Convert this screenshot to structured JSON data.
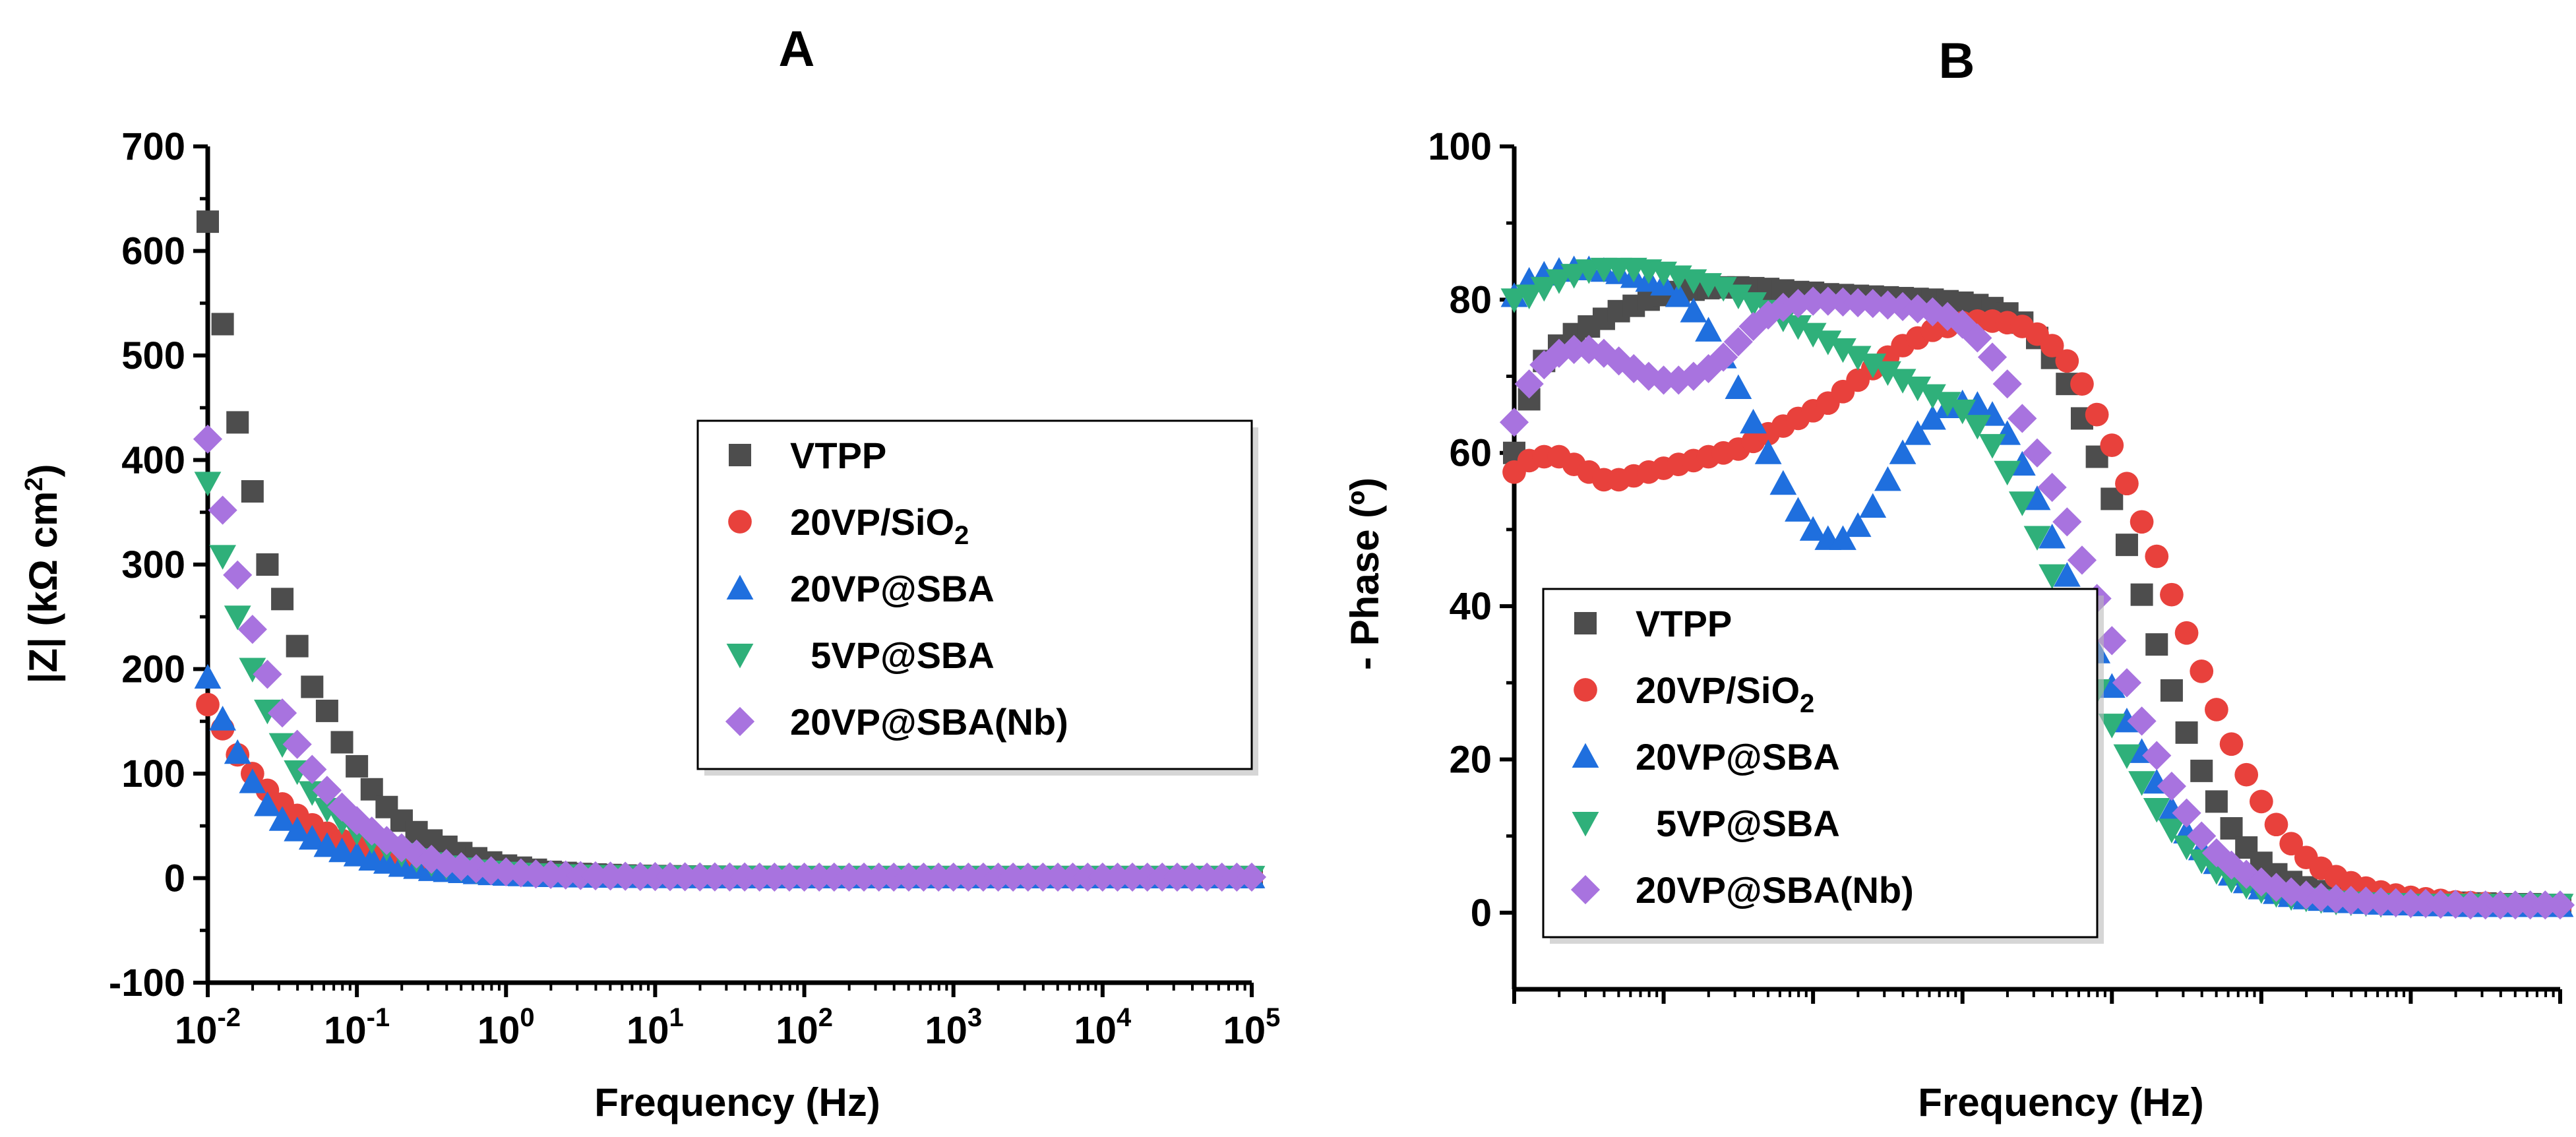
{
  "legend_entries": [
    {
      "label": "VTPP",
      "sub": "",
      "tail": "",
      "color": "#4d4d4d",
      "marker": "square"
    },
    {
      "label": "20VP/SiO",
      "sub": "2",
      "tail": "",
      "color": "#e8413c",
      "marker": "circle"
    },
    {
      "label": "20VP@SBA",
      "sub": "",
      "tail": "",
      "color": "#1f6fde",
      "marker": "triangle-up"
    },
    {
      "label": "  5VP@SBA",
      "sub": "",
      "tail": "",
      "color": "#2fb07a",
      "marker": "triangle-down"
    },
    {
      "label": "20VP@SBA(Nb)",
      "sub": "",
      "tail": "",
      "color": "#a873df",
      "marker": "diamond"
    }
  ],
  "chart_data": [
    {
      "panel": "A",
      "type": "scatter",
      "title": "A",
      "xlabel": "Frequency (Hz)",
      "ylabel_parts": [
        "|Z| (kΩ cm",
        "2",
        ")"
      ],
      "x_scale": "log",
      "xlim_log10": [
        -2,
        5
      ],
      "ylim": [
        -100,
        700
      ],
      "yticks": [
        -100,
        0,
        100,
        200,
        300,
        400,
        500,
        600,
        700
      ],
      "xtick_labels": [
        {
          "base": "10",
          "exp": "-2"
        },
        {
          "base": "10",
          "exp": "-1"
        },
        {
          "base": "10",
          "exp": "0"
        },
        {
          "base": "10",
          "exp": "1"
        },
        {
          "base": "10",
          "exp": "2"
        },
        {
          "base": "10",
          "exp": "3"
        },
        {
          "base": "10",
          "exp": "4"
        },
        {
          "base": "10",
          "exp": "5"
        }
      ],
      "legend_position": "center-right",
      "x_log10": [
        -2.0,
        -1.9,
        -1.8,
        -1.7,
        -1.6,
        -1.5,
        -1.4,
        -1.3,
        -1.2,
        -1.1,
        -1.0,
        -0.9,
        -0.8,
        -0.7,
        -0.6,
        -0.5,
        -0.4,
        -0.3,
        -0.2,
        -0.1,
        0.0,
        0.1,
        0.2,
        0.3,
        0.4,
        0.5,
        0.6,
        0.7,
        0.8,
        0.9,
        1.0,
        1.1,
        1.2,
        1.3,
        1.4,
        1.5,
        1.6,
        1.7,
        1.8,
        1.9,
        2.0,
        2.1,
        2.2,
        2.3,
        2.4,
        2.5,
        2.6,
        2.7,
        2.8,
        2.9,
        3.0,
        3.1,
        3.2,
        3.3,
        3.4,
        3.5,
        3.6,
        3.7,
        3.8,
        3.9,
        4.0,
        4.1,
        4.2,
        4.3,
        4.4,
        4.5,
        4.6,
        4.7,
        4.8,
        4.9,
        5.0
      ],
      "series": [
        {
          "name": "VTPP",
          "values": [
            628,
            530,
            436,
            370,
            300,
            267,
            222,
            183,
            160,
            130,
            107,
            85,
            68,
            55,
            44,
            36,
            30,
            24,
            19,
            15,
            12,
            10,
            8,
            6,
            5,
            4,
            3.5,
            3,
            2.5,
            2.2,
            2,
            1.8,
            1.6,
            1.5,
            1.4,
            1.3,
            1.2,
            1.2,
            1.1,
            1.1,
            1,
            1,
            1,
            1,
            1,
            1,
            1,
            1,
            1,
            1,
            1,
            1,
            1,
            1,
            1,
            1,
            1,
            1,
            1,
            1,
            1,
            1,
            1,
            1,
            1,
            1,
            1,
            1,
            1,
            1,
            1
          ]
        },
        {
          "name": "20VP/SiO2",
          "values": [
            166,
            143,
            118,
            100,
            84,
            71,
            60,
            51,
            43,
            36,
            30,
            25,
            20,
            16,
            13,
            11,
            9,
            7,
            6,
            5,
            4,
            3.5,
            3,
            2.5,
            2.2,
            2,
            1.8,
            1.6,
            1.5,
            1.4,
            1.3,
            1.2,
            1.2,
            1.1,
            1.1,
            1,
            1,
            1,
            1,
            1,
            1,
            1,
            1,
            1,
            1,
            1,
            1,
            1,
            1,
            1,
            1,
            1,
            1,
            1,
            1,
            1,
            1,
            1,
            1,
            1,
            1,
            1,
            1,
            1,
            1,
            1,
            1,
            1,
            1,
            1,
            1
          ]
        },
        {
          "name": "20VP@SBA",
          "values": [
            192,
            152,
            120,
            92,
            70,
            56,
            46,
            38,
            31,
            26,
            22,
            18,
            15,
            12,
            10,
            8,
            7,
            6,
            5,
            4,
            3.5,
            3,
            2.5,
            2.2,
            2,
            1.8,
            1.6,
            1.5,
            1.4,
            1.3,
            1.2,
            1.2,
            1.1,
            1.1,
            1,
            1,
            1,
            1,
            1,
            1,
            1,
            1,
            1,
            1,
            1,
            1,
            1,
            1,
            1,
            1,
            1,
            1,
            1,
            1,
            1,
            1,
            1,
            1,
            1,
            1,
            1,
            1,
            1,
            1,
            1,
            1,
            1,
            1,
            1,
            1,
            1
          ]
        },
        {
          "name": "5VP@SBA",
          "values": [
            378,
            308,
            250,
            200,
            160,
            128,
            102,
            82,
            66,
            54,
            44,
            36,
            29,
            23,
            18,
            14,
            11,
            9,
            7,
            6,
            5,
            4,
            3.5,
            3,
            2.5,
            2.2,
            2,
            1.8,
            1.6,
            1.5,
            1.4,
            1.3,
            1.2,
            1.2,
            1.1,
            1.1,
            1,
            1,
            1,
            1,
            1,
            1,
            1,
            1,
            1,
            1,
            1,
            1,
            1,
            1,
            1,
            1,
            1,
            1,
            1,
            1,
            1,
            1,
            1,
            1,
            1,
            1,
            1,
            1,
            1,
            1,
            1,
            1,
            1,
            1,
            1
          ]
        },
        {
          "name": "20VP@SBA(Nb)",
          "values": [
            420,
            352,
            290,
            238,
            195,
            158,
            128,
            104,
            84,
            68,
            55,
            45,
            36,
            29,
            23,
            18,
            14,
            11,
            9,
            7,
            6,
            5,
            4,
            3.5,
            3,
            2.5,
            2.2,
            2,
            1.8,
            1.6,
            1.5,
            1.4,
            1.3,
            1.2,
            1.2,
            1.1,
            1.1,
            1,
            1,
            1,
            1,
            1,
            1,
            1,
            1,
            1,
            1,
            1,
            1,
            1,
            1,
            1,
            1,
            1,
            1,
            1,
            1,
            1,
            1,
            1,
            1,
            1,
            1,
            1,
            1,
            1,
            1,
            1,
            1,
            1,
            1
          ]
        }
      ]
    },
    {
      "panel": "B",
      "type": "scatter",
      "title": "B",
      "xlabel": "Frequency (Hz)",
      "ylabel": "- Phase (º)",
      "x_scale": "log",
      "xlim_log10": [
        -2,
        5
      ],
      "xtick_labels": [],
      "ylim": [
        -10,
        100
      ],
      "yticks": [
        0,
        20,
        40,
        60,
        80,
        100
      ],
      "legend_position": "bottom-left",
      "x_log10": [
        -2.0,
        -1.9,
        -1.8,
        -1.7,
        -1.6,
        -1.5,
        -1.4,
        -1.3,
        -1.2,
        -1.1,
        -1.0,
        -0.9,
        -0.8,
        -0.7,
        -0.6,
        -0.5,
        -0.4,
        -0.3,
        -0.2,
        -0.1,
        0.0,
        0.1,
        0.2,
        0.3,
        0.4,
        0.5,
        0.6,
        0.7,
        0.8,
        0.9,
        1.0,
        1.1,
        1.2,
        1.3,
        1.4,
        1.5,
        1.6,
        1.7,
        1.8,
        1.9,
        2.0,
        2.1,
        2.2,
        2.3,
        2.4,
        2.5,
        2.6,
        2.7,
        2.8,
        2.9,
        3.0,
        3.1,
        3.2,
        3.3,
        3.4,
        3.5,
        3.6,
        3.7,
        3.8,
        3.9,
        4.0,
        4.1,
        4.2,
        4.3,
        4.4,
        4.5,
        4.6,
        4.7,
        4.8,
        4.9,
        5.0
      ],
      "series": [
        {
          "name": "VTPP",
          "values": [
            60,
            67,
            72,
            74,
            75.5,
            76.5,
            77.5,
            78.5,
            79.2,
            80,
            80.6,
            81,
            81.3,
            81.5,
            81.6,
            81.6,
            81.5,
            81.4,
            81.2,
            81,
            80.9,
            80.7,
            80.6,
            80.5,
            80.4,
            80.3,
            80.2,
            80.1,
            80,
            79.8,
            79.6,
            79.3,
            78.9,
            78.2,
            77,
            75,
            72.4,
            69,
            64.5,
            59.5,
            54,
            48,
            41.5,
            35,
            29,
            23.5,
            18.5,
            14.5,
            11,
            8.5,
            6.5,
            5,
            4,
            3.3,
            2.8,
            2.4,
            2.1,
            1.9,
            1.7,
            1.6,
            1.5,
            1.4,
            1.3,
            1.3,
            1.2,
            1.2,
            1.1,
            1.1,
            1.1,
            1,
            1
          ]
        },
        {
          "name": "20VP/SiO2",
          "values": [
            57.5,
            59,
            59.5,
            59.5,
            58.5,
            57.5,
            56.5,
            56.5,
            57,
            57.5,
            58,
            58.5,
            59,
            59.5,
            60,
            60.5,
            61.5,
            62.5,
            63.5,
            64.5,
            65.5,
            66.5,
            68,
            69.5,
            71,
            72.5,
            74,
            75,
            76,
            76.5,
            77,
            77.2,
            77.2,
            77,
            76.5,
            75.5,
            74,
            72,
            69,
            65,
            61,
            56,
            51,
            46.5,
            41.5,
            36.5,
            31.5,
            26.5,
            22,
            18,
            14.5,
            11.5,
            9,
            7.2,
            5.8,
            4.7,
            3.9,
            3.2,
            2.7,
            2.3,
            2,
            1.8,
            1.6,
            1.4,
            1.3,
            1.2,
            1.1,
            1,
            1,
            0.9,
            0.9
          ]
        },
        {
          "name": "20VP@SBA",
          "values": [
            80.5,
            82.5,
            83.3,
            83.8,
            84,
            84,
            83.8,
            83.5,
            83,
            82.5,
            82,
            80.5,
            78.5,
            76,
            72.5,
            68.5,
            64,
            60,
            56,
            52.5,
            50,
            48.8,
            48.8,
            50.5,
            53,
            56.5,
            60,
            62.5,
            64.5,
            66,
            66.5,
            66.3,
            65,
            62.5,
            58.5,
            54,
            49,
            44,
            39,
            34,
            29.5,
            25,
            21,
            17,
            13.5,
            10.5,
            8.3,
            6.5,
            5,
            4,
            3.2,
            2.6,
            2.2,
            1.9,
            1.7,
            1.5,
            1.4,
            1.3,
            1.2,
            1.1,
            1.1,
            1,
            1,
            1,
            0.9,
            0.9,
            0.9,
            0.9,
            0.9,
            0.9,
            0.9
          ]
        },
        {
          "name": "5VP@SBA",
          "values": [
            80,
            80.5,
            81.5,
            82.5,
            83.2,
            83.8,
            84,
            84,
            84,
            83.8,
            83.5,
            83,
            82.5,
            82,
            81.5,
            80.5,
            79.5,
            78.5,
            77.5,
            76.5,
            75.5,
            74.5,
            73.5,
            72.5,
            71.5,
            70.5,
            69.5,
            68.5,
            67.5,
            66.5,
            65.5,
            63.5,
            61,
            57.5,
            53.5,
            49,
            44,
            39,
            34,
            29,
            24.5,
            20.5,
            17,
            13.5,
            10.8,
            8.6,
            6.8,
            5.4,
            4.3,
            3.5,
            2.9,
            2.4,
            2,
            1.8,
            1.6,
            1.4,
            1.3,
            1.2,
            1.1,
            1.1,
            1,
            1,
            1,
            1,
            1,
            1,
            1,
            1,
            1,
            1,
            1
          ]
        },
        {
          "name": "20VP@SBA(Nb)",
          "values": [
            64,
            69,
            71.5,
            73,
            73.5,
            73.5,
            73,
            72,
            71,
            70,
            69.5,
            69.5,
            70,
            71,
            72.5,
            74.5,
            76.5,
            78,
            79,
            79.5,
            79.8,
            79.8,
            79.7,
            79.6,
            79.5,
            79.3,
            79.1,
            78.8,
            78.4,
            77.8,
            76.8,
            75,
            72.5,
            69,
            64.5,
            60,
            55.5,
            51,
            46,
            41,
            35.5,
            30,
            25,
            20.5,
            16.5,
            13,
            10,
            7.8,
            6.2,
            5,
            4,
            3.3,
            2.7,
            2.3,
            2,
            1.8,
            1.6,
            1.5,
            1.4,
            1.3,
            1.2,
            1.2,
            1.1,
            1.1,
            1,
            1,
            1,
            1,
            1,
            1,
            1
          ]
        }
      ]
    }
  ]
}
